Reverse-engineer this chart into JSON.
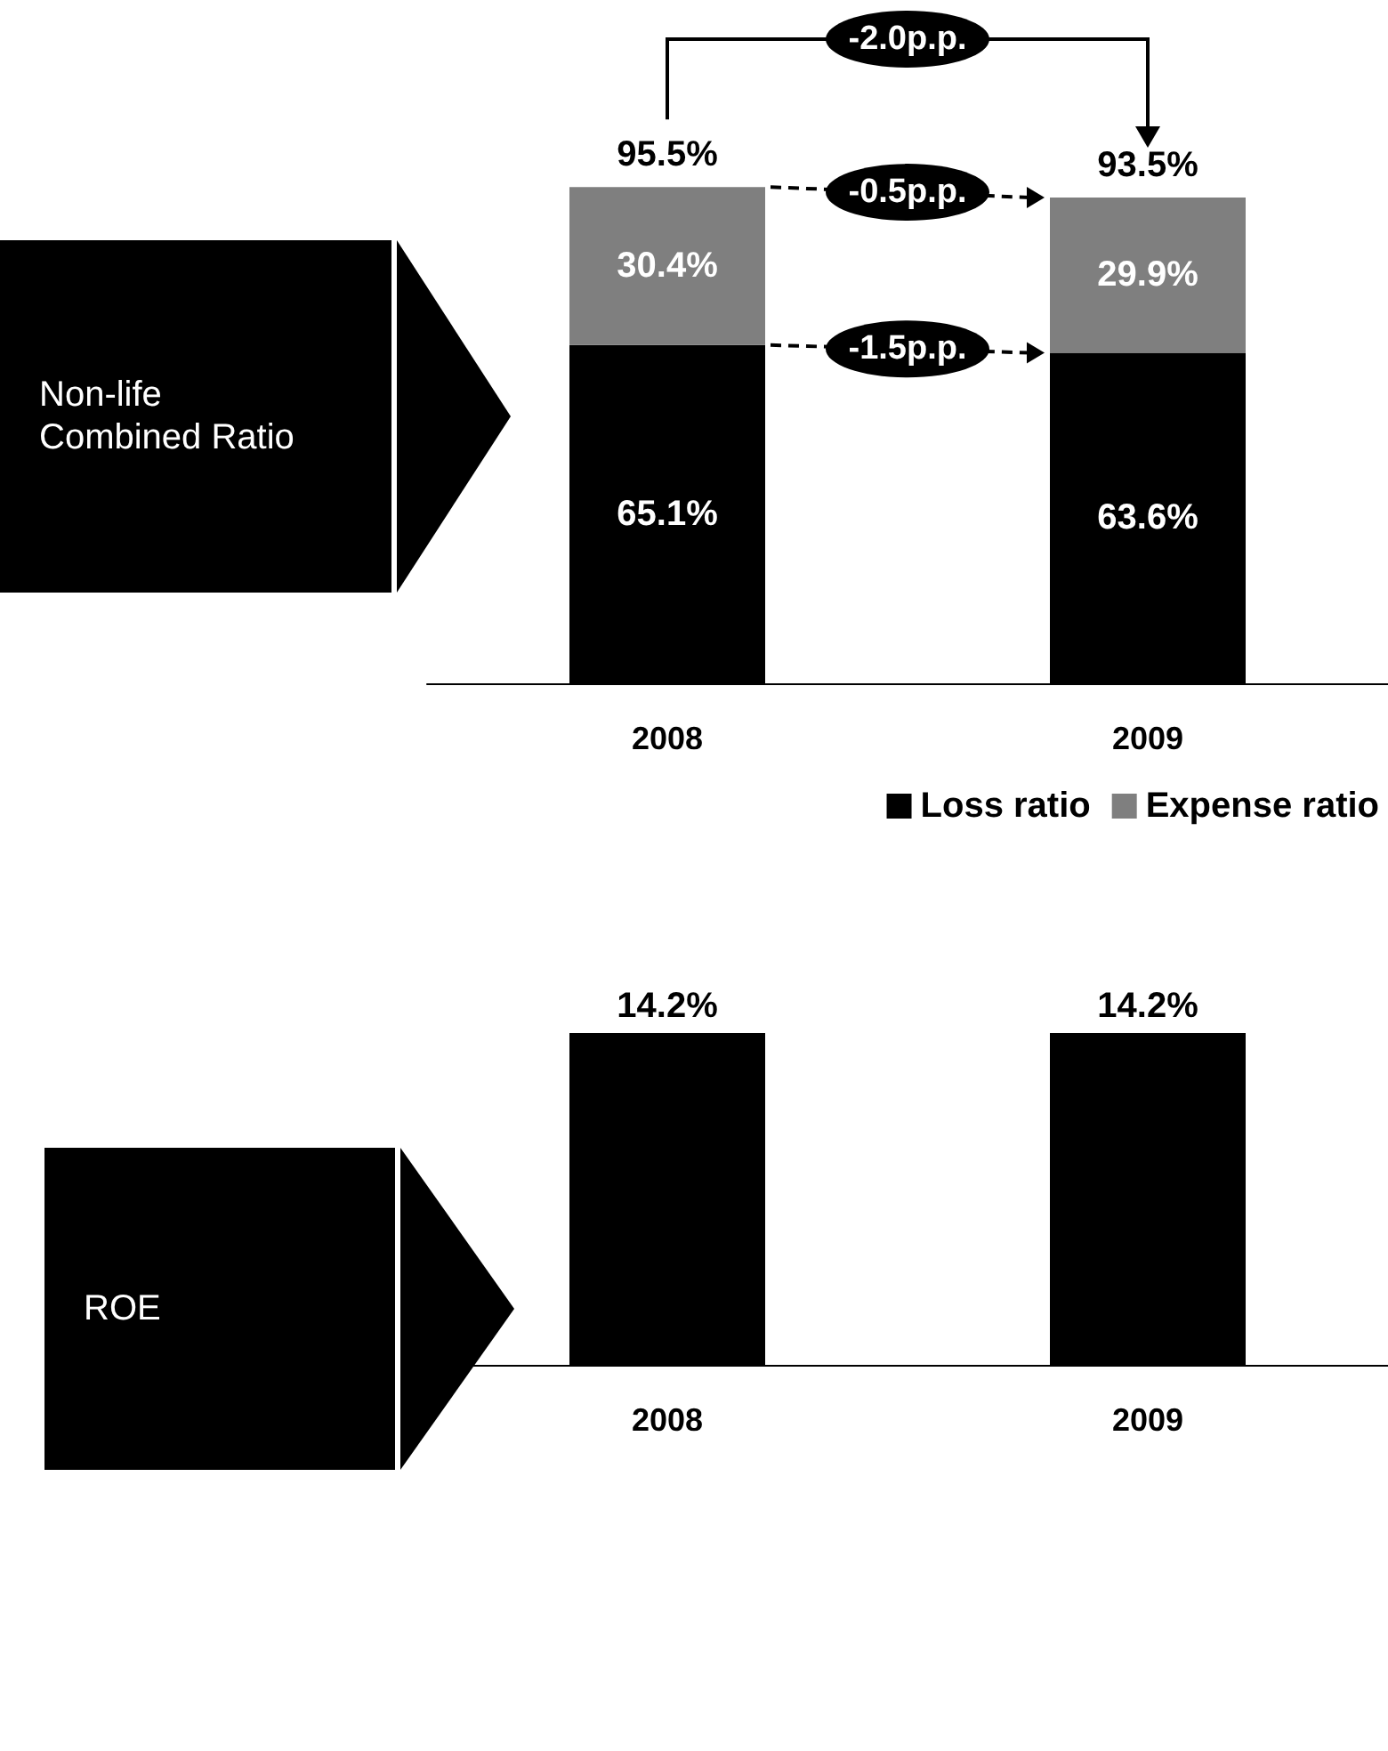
{
  "chart_data": [
    {
      "type": "bar",
      "ylabel": "Non-life Combined Ratio",
      "categories": [
        "2008",
        "2009"
      ],
      "stacked": true,
      "legend": "bottom right",
      "series": [
        {
          "name": "Loss ratio",
          "color": "#000000",
          "values": [
            65.1,
            63.6
          ],
          "value_labels": [
            "65.1%",
            "63.6%"
          ]
        },
        {
          "name": "Expense ratio",
          "color": "#7f7f7f",
          "values": [
            30.4,
            29.9
          ],
          "value_labels": [
            "30.4%",
            "29.9%"
          ]
        }
      ],
      "totals": [
        "95.5%",
        "93.5%"
      ],
      "annotations": [
        "-2.0p.p.",
        "-0.5p.p.",
        "-1.5p.p."
      ]
    },
    {
      "type": "bar",
      "ylabel": "ROE",
      "categories": [
        "2008",
        "2009"
      ],
      "legend": false,
      "color": "#000000",
      "values": [
        14.2,
        14.2
      ],
      "value_labels": [
        "14.2%",
        "14.2%"
      ]
    }
  ]
}
